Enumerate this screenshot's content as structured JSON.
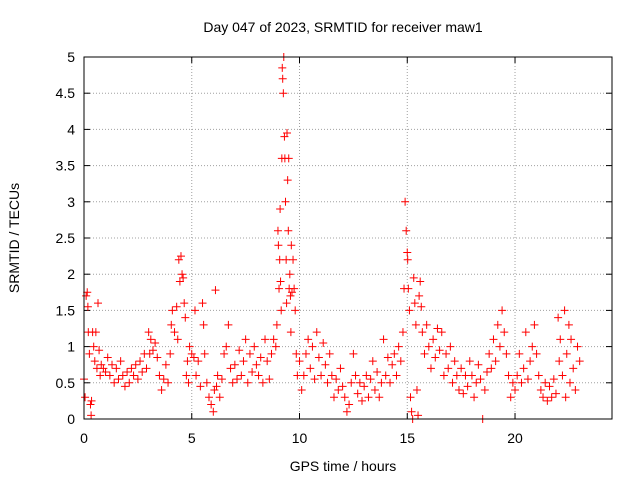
{
  "chart_data": {
    "type": "scatter",
    "title": "Day 047 of 2023, SRMTID for receiver maw1",
    "xlabel": "GPS time / hours",
    "ylabel": "SRMTID / TECUs",
    "xlim": [
      0,
      24.5
    ],
    "ylim": [
      0,
      5
    ],
    "xticks": [
      0,
      5,
      10,
      15,
      20
    ],
    "xtick_labels": [
      "0",
      "5",
      "10",
      "15",
      "20"
    ],
    "yticks": [
      0,
      0.5,
      1,
      1.5,
      2,
      2.5,
      3,
      3.5,
      4,
      4.5,
      5
    ],
    "ytick_labels": [
      "0",
      "0.5",
      "1",
      "1.5",
      "2",
      "2.5",
      "3",
      "3.5",
      "4",
      "4.5",
      "5"
    ],
    "grid": true,
    "marker": "+",
    "color": "#ff0000",
    "series": [
      {
        "name": "maw1",
        "points": [
          [
            0.0,
            0.55
          ],
          [
            0.05,
            0.3
          ],
          [
            0.1,
            1.7
          ],
          [
            0.15,
            1.75
          ],
          [
            0.18,
            1.55
          ],
          [
            0.2,
            1.2
          ],
          [
            0.25,
            0.9
          ],
          [
            0.3,
            0.2
          ],
          [
            0.33,
            0.05
          ],
          [
            0.35,
            0.25
          ],
          [
            0.4,
            1.2
          ],
          [
            0.45,
            1.0
          ],
          [
            0.5,
            0.8
          ],
          [
            0.55,
            1.2
          ],
          [
            0.6,
            0.7
          ],
          [
            0.65,
            1.6
          ],
          [
            0.7,
            0.95
          ],
          [
            0.75,
            0.6
          ],
          [
            0.8,
            0.75
          ],
          [
            0.9,
            0.7
          ],
          [
            1.0,
            0.65
          ],
          [
            1.1,
            0.85
          ],
          [
            1.2,
            0.6
          ],
          [
            1.3,
            0.75
          ],
          [
            1.4,
            0.5
          ],
          [
            1.5,
            0.7
          ],
          [
            1.6,
            0.55
          ],
          [
            1.7,
            0.8
          ],
          [
            1.8,
            0.6
          ],
          [
            1.9,
            0.45
          ],
          [
            2.0,
            0.65
          ],
          [
            2.1,
            0.5
          ],
          [
            2.2,
            0.7
          ],
          [
            2.3,
            0.6
          ],
          [
            2.4,
            0.75
          ],
          [
            2.5,
            0.55
          ],
          [
            2.6,
            0.8
          ],
          [
            2.7,
            0.65
          ],
          [
            2.8,
            0.9
          ],
          [
            2.9,
            0.7
          ],
          [
            3.0,
            1.2
          ],
          [
            3.05,
            0.9
          ],
          [
            3.1,
            1.1
          ],
          [
            3.2,
            0.95
          ],
          [
            3.3,
            1.05
          ],
          [
            3.4,
            0.85
          ],
          [
            3.5,
            0.6
          ],
          [
            3.6,
            0.4
          ],
          [
            3.7,
            0.55
          ],
          [
            3.8,
            0.75
          ],
          [
            3.9,
            0.5
          ],
          [
            4.0,
            0.9
          ],
          [
            4.05,
            1.3
          ],
          [
            4.1,
            1.5
          ],
          [
            4.2,
            1.2
          ],
          [
            4.3,
            1.55
          ],
          [
            4.35,
            1.1
          ],
          [
            4.4,
            2.2
          ],
          [
            4.45,
            1.9
          ],
          [
            4.5,
            2.25
          ],
          [
            4.55,
            2.0
          ],
          [
            4.6,
            1.95
          ],
          [
            4.65,
            1.6
          ],
          [
            4.7,
            1.4
          ],
          [
            4.75,
            0.6
          ],
          [
            4.8,
            0.8
          ],
          [
            4.85,
            0.5
          ],
          [
            4.9,
            1.0
          ],
          [
            5.0,
            0.9
          ],
          [
            5.1,
            0.85
          ],
          [
            5.15,
            1.5
          ],
          [
            5.2,
            0.6
          ],
          [
            5.3,
            0.8
          ],
          [
            5.4,
            0.45
          ],
          [
            5.5,
            1.6
          ],
          [
            5.55,
            1.3
          ],
          [
            5.6,
            0.9
          ],
          [
            5.7,
            0.5
          ],
          [
            5.8,
            0.3
          ],
          [
            5.9,
            0.2
          ],
          [
            6.0,
            0.1
          ],
          [
            6.05,
            0.4
          ],
          [
            6.1,
            1.78
          ],
          [
            6.15,
            0.45
          ],
          [
            6.2,
            0.6
          ],
          [
            6.3,
            0.3
          ],
          [
            6.4,
            0.55
          ],
          [
            6.5,
            0.9
          ],
          [
            6.6,
            1.0
          ],
          [
            6.7,
            1.3
          ],
          [
            6.8,
            0.7
          ],
          [
            6.9,
            0.5
          ],
          [
            7.0,
            0.75
          ],
          [
            7.1,
            0.55
          ],
          [
            7.2,
            0.95
          ],
          [
            7.3,
            0.6
          ],
          [
            7.4,
            0.8
          ],
          [
            7.5,
            1.1
          ],
          [
            7.6,
            0.5
          ],
          [
            7.7,
            0.9
          ],
          [
            7.8,
            0.65
          ],
          [
            7.9,
            1.0
          ],
          [
            8.0,
            0.75
          ],
          [
            8.1,
            0.6
          ],
          [
            8.2,
            0.85
          ],
          [
            8.3,
            0.5
          ],
          [
            8.4,
            1.1
          ],
          [
            8.5,
            0.8
          ],
          [
            8.6,
            0.55
          ],
          [
            8.7,
            0.9
          ],
          [
            8.8,
            1.1
          ],
          [
            8.9,
            1.0
          ],
          [
            8.95,
            1.3
          ],
          [
            9.0,
            2.6
          ],
          [
            9.02,
            2.4
          ],
          [
            9.05,
            1.8
          ],
          [
            9.08,
            2.2
          ],
          [
            9.1,
            2.9
          ],
          [
            9.12,
            1.9
          ],
          [
            9.15,
            1.5
          ],
          [
            9.18,
            3.6
          ],
          [
            9.2,
            4.85
          ],
          [
            9.22,
            4.7
          ],
          [
            9.25,
            4.5
          ],
          [
            9.27,
            5.0
          ],
          [
            9.3,
            3.9
          ],
          [
            9.32,
            3.6
          ],
          [
            9.35,
            3.0
          ],
          [
            9.38,
            2.2
          ],
          [
            9.4,
            1.6
          ],
          [
            9.42,
            3.95
          ],
          [
            9.45,
            3.3
          ],
          [
            9.48,
            2.6
          ],
          [
            9.5,
            3.6
          ],
          [
            9.52,
            1.8
          ],
          [
            9.55,
            2.0
          ],
          [
            9.58,
            1.7
          ],
          [
            9.6,
            1.2
          ],
          [
            9.62,
            2.4
          ],
          [
            9.65,
            1.75
          ],
          [
            9.7,
            2.2
          ],
          [
            9.75,
            1.8
          ],
          [
            9.8,
            1.5
          ],
          [
            9.85,
            0.9
          ],
          [
            9.9,
            0.6
          ],
          [
            10.0,
            0.8
          ],
          [
            10.1,
            0.4
          ],
          [
            10.2,
            0.6
          ],
          [
            10.3,
            0.9
          ],
          [
            10.4,
            1.1
          ],
          [
            10.5,
            0.7
          ],
          [
            10.6,
            1.0
          ],
          [
            10.7,
            0.55
          ],
          [
            10.8,
            1.2
          ],
          [
            10.9,
            0.85
          ],
          [
            11.0,
            0.6
          ],
          [
            11.1,
            1.05
          ],
          [
            11.2,
            0.75
          ],
          [
            11.3,
            0.5
          ],
          [
            11.4,
            0.9
          ],
          [
            11.5,
            0.6
          ],
          [
            11.6,
            0.3
          ],
          [
            11.7,
            0.55
          ],
          [
            11.8,
            0.4
          ],
          [
            11.9,
            0.7
          ],
          [
            12.0,
            0.45
          ],
          [
            12.1,
            0.3
          ],
          [
            12.2,
            0.1
          ],
          [
            12.3,
            0.2
          ],
          [
            12.4,
            0.5
          ],
          [
            12.5,
            0.9
          ],
          [
            12.6,
            0.6
          ],
          [
            12.7,
            0.35
          ],
          [
            12.8,
            0.5
          ],
          [
            12.9,
            0.25
          ],
          [
            13.0,
            0.45
          ],
          [
            13.1,
            0.6
          ],
          [
            13.2,
            0.3
          ],
          [
            13.3,
            0.55
          ],
          [
            13.4,
            0.8
          ],
          [
            13.5,
            0.4
          ],
          [
            13.6,
            0.65
          ],
          [
            13.7,
            0.3
          ],
          [
            13.8,
            0.5
          ],
          [
            13.9,
            1.1
          ],
          [
            14.0,
            0.6
          ],
          [
            14.1,
            0.85
          ],
          [
            14.2,
            0.5
          ],
          [
            14.3,
            0.75
          ],
          [
            14.4,
            0.9
          ],
          [
            14.5,
            0.6
          ],
          [
            14.6,
            1.0
          ],
          [
            14.7,
            0.8
          ],
          [
            14.8,
            1.2
          ],
          [
            14.85,
            1.8
          ],
          [
            14.9,
            3.0
          ],
          [
            14.95,
            2.6
          ],
          [
            15.0,
            2.3
          ],
          [
            15.02,
            2.2
          ],
          [
            15.05,
            1.8
          ],
          [
            15.1,
            1.5
          ],
          [
            15.15,
            0.3
          ],
          [
            15.2,
            0.1
          ],
          [
            15.25,
            0.0
          ],
          [
            15.3,
            1.95
          ],
          [
            15.35,
            1.6
          ],
          [
            15.4,
            1.3
          ],
          [
            15.45,
            0.4
          ],
          [
            15.5,
            0.05
          ],
          [
            15.55,
            1.7
          ],
          [
            15.6,
            1.9
          ],
          [
            15.65,
            1.55
          ],
          [
            15.7,
            1.2
          ],
          [
            15.8,
            0.9
          ],
          [
            15.9,
            1.3
          ],
          [
            16.0,
            1.0
          ],
          [
            16.1,
            0.7
          ],
          [
            16.2,
            1.1
          ],
          [
            16.3,
            0.85
          ],
          [
            16.4,
            1.25
          ],
          [
            16.5,
            0.95
          ],
          [
            16.6,
            1.2
          ],
          [
            16.7,
            0.6
          ],
          [
            16.8,
            0.9
          ],
          [
            16.9,
            0.7
          ],
          [
            17.0,
            1.0
          ],
          [
            17.1,
            0.5
          ],
          [
            17.2,
            0.8
          ],
          [
            17.3,
            0.6
          ],
          [
            17.4,
            0.4
          ],
          [
            17.5,
            0.7
          ],
          [
            17.6,
            0.35
          ],
          [
            17.7,
            0.6
          ],
          [
            17.8,
            0.45
          ],
          [
            17.9,
            0.8
          ],
          [
            18.0,
            0.6
          ],
          [
            18.1,
            0.3
          ],
          [
            18.2,
            0.5
          ],
          [
            18.3,
            0.75
          ],
          [
            18.4,
            0.55
          ],
          [
            18.5,
            0.0
          ],
          [
            18.6,
            0.4
          ],
          [
            18.7,
            0.65
          ],
          [
            18.8,
            0.9
          ],
          [
            18.9,
            0.7
          ],
          [
            19.0,
            1.1
          ],
          [
            19.1,
            0.8
          ],
          [
            19.2,
            1.3
          ],
          [
            19.3,
            1.0
          ],
          [
            19.4,
            1.5
          ],
          [
            19.5,
            1.2
          ],
          [
            19.6,
            0.9
          ],
          [
            19.7,
            0.6
          ],
          [
            19.8,
            0.3
          ],
          [
            19.9,
            0.5
          ],
          [
            20.0,
            0.4
          ],
          [
            20.1,
            0.6
          ],
          [
            20.2,
            0.9
          ],
          [
            20.3,
            0.5
          ],
          [
            20.4,
            0.7
          ],
          [
            20.5,
            1.2
          ],
          [
            20.6,
            0.55
          ],
          [
            20.7,
            0.8
          ],
          [
            20.8,
            1.0
          ],
          [
            20.9,
            1.3
          ],
          [
            21.0,
            0.9
          ],
          [
            21.1,
            0.6
          ],
          [
            21.2,
            0.4
          ],
          [
            21.3,
            0.3
          ],
          [
            21.4,
            0.5
          ],
          [
            21.5,
            0.25
          ],
          [
            21.6,
            0.45
          ],
          [
            21.7,
            0.3
          ],
          [
            21.8,
            0.55
          ],
          [
            21.9,
            0.35
          ],
          [
            22.0,
            1.4
          ],
          [
            22.05,
            0.8
          ],
          [
            22.1,
            1.1
          ],
          [
            22.2,
            0.6
          ],
          [
            22.3,
            1.5
          ],
          [
            22.35,
            0.3
          ],
          [
            22.4,
            0.9
          ],
          [
            22.5,
            1.3
          ],
          [
            22.55,
            0.5
          ],
          [
            22.6,
            1.1
          ],
          [
            22.7,
            0.7
          ],
          [
            22.8,
            0.4
          ],
          [
            22.9,
            1.0
          ],
          [
            23.0,
            0.8
          ]
        ]
      }
    ]
  }
}
